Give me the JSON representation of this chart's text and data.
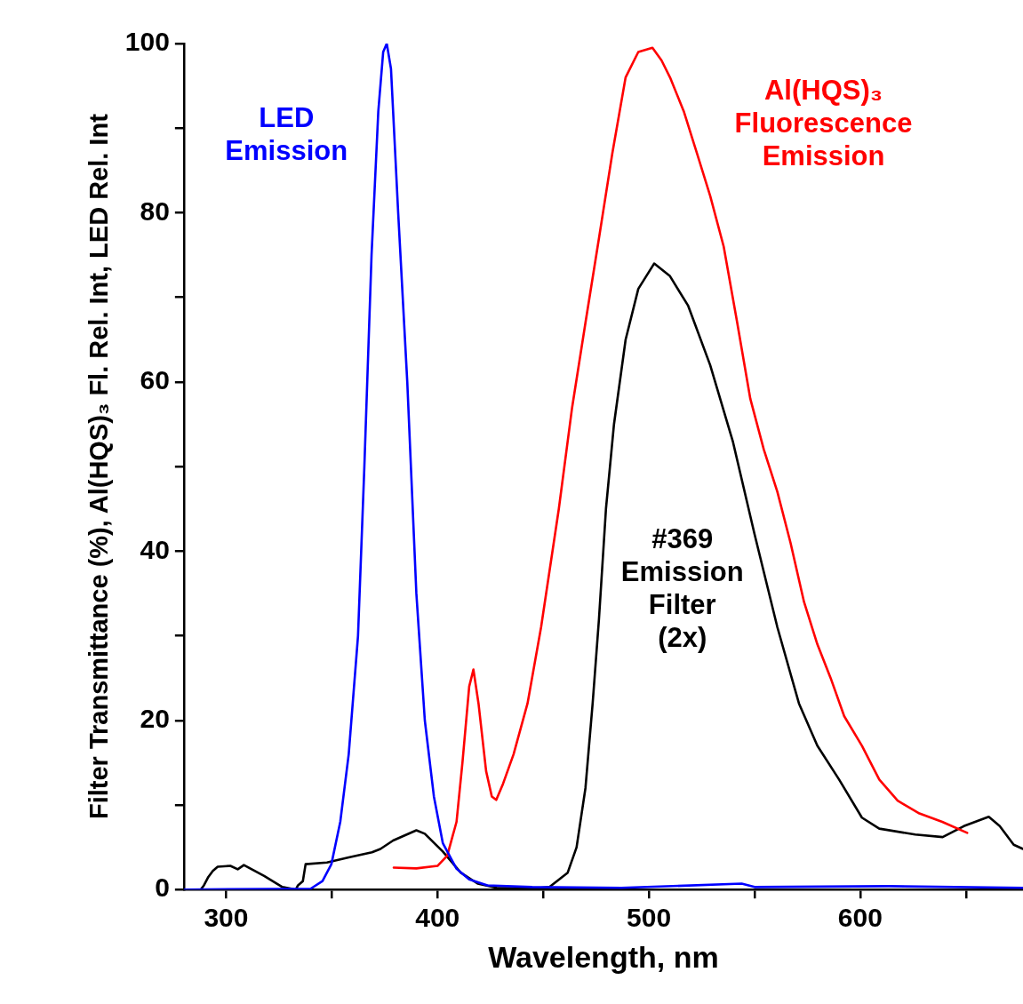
{
  "chart_data": {
    "type": "line",
    "xlabel": "Wavelength, nm",
    "ylabel": "Filter Transmittance (%), Al(HQS)₃ Fl. Rel. Int, LED Rel. Int",
    "xlim": [
      280,
      677
    ],
    "ylim": [
      0,
      100
    ],
    "xticks": [
      300,
      {
        "value": 350,
        "label": null
      },
      400,
      {
        "value": 450,
        "label": null
      },
      500,
      {
        "value": 550,
        "label": null
      },
      600,
      {
        "value": 650,
        "label": null
      }
    ],
    "yticks": [
      0,
      {
        "value": 10,
        "label": null
      },
      20,
      {
        "value": 30,
        "label": null
      },
      40,
      {
        "value": 50,
        "label": null
      },
      60,
      {
        "value": 70,
        "label": null
      },
      80,
      {
        "value": 90,
        "label": null
      },
      100
    ],
    "grid": false,
    "legend": false,
    "series": [
      {
        "name": "LED Emission",
        "color": "#0000ff",
        "x": [
          280,
          340,
          345.6,
          349.8,
          354,
          358,
          362.4,
          365.4,
          368.8,
          372,
          374.3,
          376,
          378,
          381.4,
          385.7,
          390,
          394,
          398.3,
          402.5,
          408.9,
          415,
          423.6,
          444.7,
          487,
          543.9,
          550,
          613.5,
          677
        ],
        "values": [
          0,
          0.1,
          1,
          3,
          8,
          16,
          30,
          50,
          75,
          92,
          99,
          100,
          97,
          80,
          60,
          35,
          20,
          11,
          5.5,
          2.5,
          1.2,
          0.5,
          0.3,
          0.2,
          0.7,
          0.3,
          0.4,
          0.2
        ]
      },
      {
        "name": "Al(HQS)₃ Fluorescence Emission",
        "color": "#ff0000",
        "x": [
          379.3,
          390,
          400,
          404.6,
          409,
          411.8,
          415,
          417,
          419.4,
          423,
          425.7,
          427.8,
          431,
          436,
          442.6,
          449,
          457.4,
          463.7,
          470,
          476.4,
          482.7,
          489,
          495,
          501.7,
          506,
          510,
          516.5,
          522.8,
          529,
          535.4,
          541.8,
          548,
          554.4,
          560.8,
          567,
          573.4,
          579.7,
          586,
          592.4,
          600.8,
          609,
          617.7,
          628,
          638.8,
          650.6
        ],
        "values": [
          2.6,
          2.5,
          2.8,
          4,
          8,
          15,
          24,
          26,
          22,
          14,
          11,
          10.6,
          12.5,
          16,
          22,
          31,
          45,
          57,
          67,
          77,
          87,
          96,
          99,
          99.5,
          98,
          96,
          92,
          87,
          82,
          76,
          67,
          58,
          52,
          47,
          41,
          34,
          29,
          25,
          20.5,
          17,
          13,
          10.5,
          9,
          8,
          6.7
        ]
      },
      {
        "name": "#369 Emission Filter (2x)",
        "color": "#000000",
        "x": [
          280,
          288,
          289.5,
          291.6,
          293.7,
          296,
          302,
          305.5,
          308.4,
          318,
          326.6,
          333,
          334,
          336.3,
          337.6,
          347.7,
          358,
          369,
          373,
          379,
          390,
          394,
          402.5,
          411,
          419,
          428,
          444.7,
          453,
          461.6,
          465.8,
          470,
          473.4,
          476.4,
          479.7,
          483.5,
          489,
          495,
          502.5,
          510,
          518.6,
          529,
          539.7,
          550,
          560.8,
          571,
          579.7,
          590,
          600.8,
          609,
          626,
          639,
          649,
          660.8,
          666,
          672.6,
          677
        ],
        "values": [
          0,
          0,
          0.5,
          1.5,
          2.2,
          2.7,
          2.8,
          2.4,
          2.9,
          1.6,
          0.3,
          0,
          0.5,
          1,
          3,
          3.2,
          3.8,
          4.4,
          4.8,
          5.8,
          7,
          6.6,
          4.5,
          2,
          0.7,
          0.2,
          0.1,
          0.3,
          2,
          5,
          12,
          22,
          32,
          45,
          55,
          65,
          71,
          74,
          72.5,
          69,
          62,
          53,
          42,
          31,
          22,
          17,
          13,
          8.5,
          7.2,
          6.5,
          6.2,
          7.5,
          8.6,
          7.5,
          5.3,
          4.8
        ]
      }
    ]
  }
}
